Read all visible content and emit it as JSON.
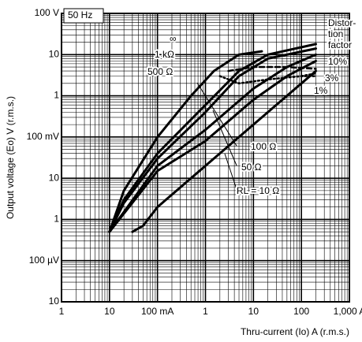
{
  "chart_data": {
    "type": "line",
    "xlabel": "Thru-current (Io) A (r.m.s.)",
    "ylabel": "Output voltage (Eo) V (r.m.s.)",
    "xscale": "log",
    "yscale": "log",
    "grid": true,
    "minor_grid": true,
    "xlim": [
      0.001,
      1000
    ],
    "ylim": [
      1e-05,
      100
    ],
    "xticks": [
      {
        "value": 0.001,
        "label": "1"
      },
      {
        "value": 0.01,
        "label": "10"
      },
      {
        "value": 0.1,
        "label": "100 mA"
      },
      1,
      10,
      100,
      {
        "value": 1000,
        "label": "1,000 A"
      }
    ],
    "yticks": [
      {
        "value": 1e-05,
        "label": "10"
      },
      {
        "value": 0.0001,
        "label": "100 µV"
      },
      {
        "value": 0.001,
        "label": "1"
      },
      {
        "value": 0.01,
        "label": "10"
      },
      {
        "value": 0.1,
        "label": "100 mV"
      },
      1,
      10,
      {
        "value": 100,
        "label": "100 V"
      }
    ],
    "series": [
      {
        "name": "∞",
        "color": "#000000",
        "x": [
          0.01,
          0.02,
          0.1,
          0.5,
          1.5,
          5,
          15
        ],
        "values": [
          0.0005,
          0.005,
          0.1,
          1,
          4,
          10,
          12
        ]
      },
      {
        "name": "1 kΩ",
        "color": "#000000",
        "x": [
          0.01,
          0.02,
          0.1,
          1,
          5,
          20,
          200
        ],
        "values": [
          0.0005,
          0.003,
          0.04,
          0.6,
          4,
          10,
          18
        ]
      },
      {
        "name": "500 Ω",
        "color": "#000000",
        "x": [
          0.01,
          0.02,
          0.1,
          1,
          5,
          20,
          200
        ],
        "values": [
          0.0005,
          0.0025,
          0.03,
          0.4,
          3,
          8,
          14
        ]
      },
      {
        "name": "100 Ω",
        "color": "#000000",
        "x": [
          0.01,
          0.1,
          1,
          10,
          50,
          200
        ],
        "values": [
          0.0005,
          0.02,
          0.15,
          1.5,
          5,
          10
        ]
      },
      {
        "name": "50 Ω",
        "color": "#000000",
        "x": [
          0.01,
          0.1,
          1,
          10,
          50,
          200
        ],
        "values": [
          0.0005,
          0.015,
          0.08,
          0.8,
          3,
          7
        ]
      },
      {
        "name": "RL = 10 Ω",
        "color": "#000000",
        "x": [
          0.03,
          0.05,
          0.1,
          1,
          10,
          100,
          200
        ],
        "values": [
          0.0005,
          0.0007,
          0.002,
          0.02,
          0.2,
          2,
          4
        ]
      },
      {
        "name": "10%",
        "color": "#000000",
        "dash": "6 4",
        "x": [
          3,
          10,
          50,
          200
        ],
        "values": [
          4,
          5,
          5,
          4.5
        ]
      },
      {
        "name": "3%",
        "color": "#000000",
        "dash": "2 3",
        "x": [
          2,
          5,
          20,
          100,
          200
        ],
        "values": [
          3,
          2,
          2.5,
          3,
          3
        ]
      },
      {
        "name": "1%",
        "color": "#000000",
        "dash": "2 3",
        "x": [
          100,
          200
        ],
        "values": [
          3,
          3.5
        ]
      }
    ],
    "annotations": [
      "50 Hz",
      "Distor-",
      "tion",
      "factor"
    ]
  }
}
